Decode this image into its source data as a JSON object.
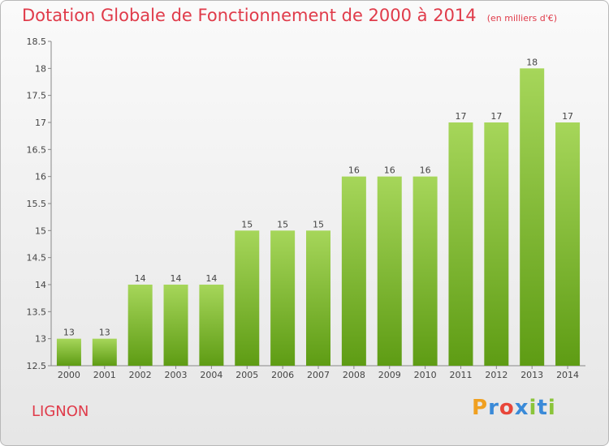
{
  "title": "Dotation Globale de Fonctionnement de 2000 à 2014",
  "unit": "(en milliers d'€)",
  "commune": "LIGNON",
  "logo": {
    "letters": [
      "P",
      "r",
      "o",
      "x",
      "i",
      "t",
      "i"
    ],
    "colors": [
      "#f0a020",
      "#3a8ad8",
      "#e8463a",
      "#3a8ad8",
      "#8ac43a",
      "#3a8ad8",
      "#8ac43a"
    ]
  },
  "colors": {
    "bar_light": "#a6d65a",
    "bar_dark": "#5e9c14",
    "title": "#e03b4a"
  },
  "chart_data": {
    "type": "bar",
    "title": "Dotation Globale de Fonctionnement de 2000 à 2014",
    "xlabel": "",
    "ylabel": "",
    "categories": [
      "2000",
      "2001",
      "2002",
      "2003",
      "2004",
      "2005",
      "2006",
      "2007",
      "2008",
      "2009",
      "2010",
      "2011",
      "2012",
      "2013",
      "2014"
    ],
    "values": [
      13,
      13,
      14,
      14,
      14,
      15,
      15,
      15,
      16,
      16,
      16,
      17,
      17,
      18,
      17
    ],
    "ylim": [
      12.5,
      18.5
    ],
    "yticks": [
      12.5,
      13,
      13.5,
      14,
      14.5,
      15,
      15.5,
      16,
      16.5,
      17,
      17.5,
      18,
      18.5
    ],
    "ytick_labels": [
      "12.5",
      "13",
      "13.5",
      "14",
      "14.5",
      "15",
      "15.5",
      "16",
      "16.5",
      "17",
      "17.5",
      "18",
      "18.5"
    ],
    "grid": false,
    "data_labels": true
  }
}
